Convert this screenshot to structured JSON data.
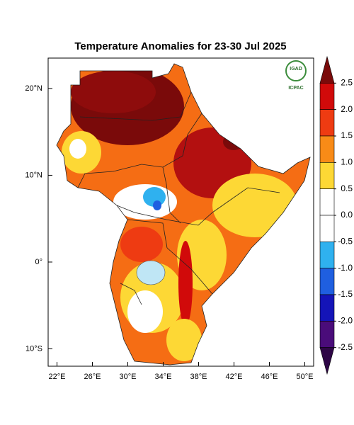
{
  "map": {
    "title": "Temperature Anomalies for 23-30 Jul 2025",
    "xlim": [
      21,
      51
    ],
    "ylim": [
      -12,
      23.5
    ],
    "xticks": [
      {
        "value": 22,
        "label": "22°E"
      },
      {
        "value": 26,
        "label": "26°E"
      },
      {
        "value": 30,
        "label": "30°E"
      },
      {
        "value": 34,
        "label": "34°E"
      },
      {
        "value": 38,
        "label": "38°E"
      },
      {
        "value": 42,
        "label": "42°E"
      },
      {
        "value": 46,
        "label": "46°E"
      },
      {
        "value": 50,
        "label": "50°E"
      }
    ],
    "yticks": [
      {
        "value": 20,
        "label": "20°N"
      },
      {
        "value": 10,
        "label": "10°N"
      },
      {
        "value": 0,
        "label": "0°"
      },
      {
        "value": -10,
        "label": "10°S"
      }
    ],
    "colorbar": {
      "levels": [
        2.5,
        {
          "value": 2,
          "label": "2.0"
        },
        1.5,
        {
          "value": 1,
          "label": "1.0"
        },
        0.5,
        {
          "value": 0,
          "label": "0.0"
        },
        -0.5,
        {
          "value": -1,
          "label": "-1.0"
        },
        -1.5,
        {
          "value": -2,
          "label": "-2.0"
        },
        -2.5
      ],
      "colors": [
        "#7a0a0a",
        "#d10a0a",
        "#ee3b12",
        "#f88b17",
        "#fdd835",
        "#ffffff",
        "#ffffff",
        "#2fb1ef",
        "#1f5fe0",
        "#1414b8",
        "#4a0c7a",
        "#2e0646"
      ]
    },
    "logo": {
      "top": "IGAD",
      "bottom": "ICPAC"
    }
  }
}
